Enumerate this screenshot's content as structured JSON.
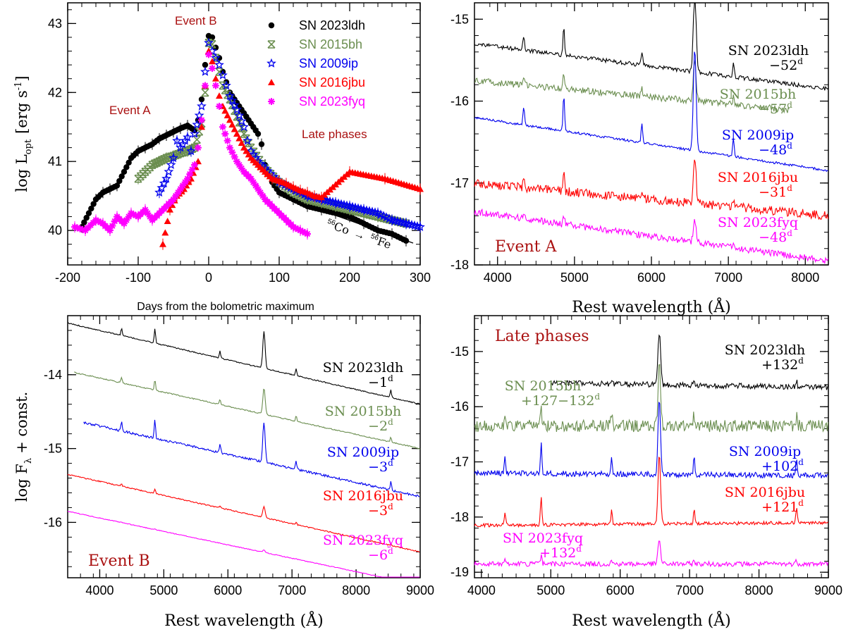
{
  "chart_data": [
    {
      "id": "A",
      "type": "scatter",
      "xlabel": "Days from the bolometric maximum",
      "ylabel": "log L",
      "ylabel_sub": "opt",
      "ylabel_unit": "[erg s",
      "ylabel_unit_sup": "-1",
      "ylabel_unit_end": "]",
      "xlim": [
        -200,
        300
      ],
      "ylim": [
        39.5,
        43.3
      ],
      "xticks": [
        "-200",
        "-100",
        "0",
        "100",
        "200",
        "300"
      ],
      "yticks": [
        "40",
        "41",
        "42",
        "43"
      ],
      "annotations": {
        "event_a": "Event A",
        "event_b": "Event B",
        "late": "Late phases",
        "decay_a": "56",
        "decay_b": "Co",
        "decay_arrow": "→",
        "decay_c": "56",
        "decay_d": "Fe"
      },
      "series": [
        {
          "name": "SN 2023ldh",
          "color": "#000000",
          "marker": "circle",
          "points": [
            [
              -180,
              40.05
            ],
            [
              -170,
              40.25
            ],
            [
              -160,
              40.45
            ],
            [
              -150,
              40.55
            ],
            [
              -140,
              40.6
            ],
            [
              -130,
              40.65
            ],
            [
              -120,
              40.85
            ],
            [
              -110,
              41.05
            ],
            [
              -100,
              41.15
            ],
            [
              -90,
              41.2
            ],
            [
              -80,
              41.25
            ],
            [
              -70,
              41.33
            ],
            [
              -60,
              41.38
            ],
            [
              -50,
              41.43
            ],
            [
              -40,
              41.48
            ],
            [
              -30,
              41.52
            ],
            [
              -20,
              41.45
            ],
            [
              -15,
              41.6
            ],
            [
              -10,
              41.9
            ],
            [
              -5,
              42.4
            ],
            [
              0,
              42.82
            ],
            [
              5,
              42.8
            ],
            [
              10,
              42.65
            ],
            [
              15,
              42.5
            ],
            [
              20,
              42.3
            ],
            [
              25,
              42.15
            ],
            [
              30,
              42.0
            ],
            [
              40,
              41.85
            ],
            [
              50,
              41.7
            ],
            [
              60,
              41.55
            ],
            [
              70,
              41.4
            ],
            [
              75,
              41.25
            ],
            [
              80,
              40.95
            ],
            [
              90,
              40.7
            ],
            [
              100,
              40.55
            ],
            [
              120,
              40.45
            ],
            [
              140,
              40.35
            ],
            [
              160,
              40.3
            ],
            [
              180,
              40.25
            ],
            [
              200,
              40.2
            ],
            [
              220,
              40.1
            ],
            [
              240,
              40.0
            ],
            [
              260,
              39.95
            ],
            [
              280,
              39.85
            ]
          ]
        },
        {
          "name": "SN 2015bh",
          "color": "#6b8e50",
          "marker": "cross",
          "points": [
            [
              -100,
              40.75
            ],
            [
              -90,
              40.85
            ],
            [
              -80,
              40.95
            ],
            [
              -70,
              41.0
            ],
            [
              -60,
              41.05
            ],
            [
              -50,
              41.08
            ],
            [
              -40,
              41.12
            ],
            [
              -30,
              41.15
            ],
            [
              -20,
              41.2
            ],
            [
              -10,
              41.55
            ],
            [
              -5,
              42.0
            ],
            [
              0,
              42.72
            ],
            [
              5,
              42.7
            ],
            [
              10,
              42.5
            ],
            [
              15,
              42.3
            ],
            [
              20,
              42.1
            ],
            [
              30,
              41.9
            ],
            [
              40,
              41.65
            ],
            [
              50,
              41.4
            ],
            [
              60,
              41.2
            ],
            [
              80,
              40.9
            ],
            [
              100,
              40.7
            ],
            [
              120,
              40.55
            ],
            [
              140,
              40.45
            ],
            [
              160,
              40.4
            ],
            [
              180,
              40.35
            ],
            [
              200,
              40.3
            ],
            [
              220,
              40.25
            ],
            [
              240,
              40.2
            ],
            [
              260,
              40.15
            ],
            [
              280,
              40.1
            ]
          ]
        },
        {
          "name": "SN 2009ip",
          "color": "#0000ee",
          "marker": "star",
          "points": [
            [
              -70,
              40.55
            ],
            [
              -60,
              40.75
            ],
            [
              -50,
              41.05
            ],
            [
              -45,
              41.3
            ],
            [
              -40,
              41.2
            ],
            [
              -30,
              41.35
            ],
            [
              -25,
              41.15
            ],
            [
              -20,
              41.4
            ],
            [
              -10,
              41.8
            ],
            [
              -5,
              42.3
            ],
            [
              0,
              42.72
            ],
            [
              5,
              42.6
            ],
            [
              10,
              42.5
            ],
            [
              15,
              42.4
            ],
            [
              20,
              42.25
            ],
            [
              25,
              42.1
            ],
            [
              30,
              41.95
            ],
            [
              40,
              41.75
            ],
            [
              50,
              41.5
            ],
            [
              55,
              41.3
            ],
            [
              60,
              41.15
            ],
            [
              70,
              41.0
            ],
            [
              80,
              40.9
            ],
            [
              100,
              40.7
            ],
            [
              120,
              40.6
            ],
            [
              140,
              40.5
            ],
            [
              160,
              40.45
            ],
            [
              180,
              40.4
            ],
            [
              200,
              40.35
            ],
            [
              220,
              40.3
            ],
            [
              240,
              40.25
            ],
            [
              260,
              40.15
            ],
            [
              280,
              40.1
            ],
            [
              300,
              40.05
            ]
          ]
        },
        {
          "name": "SN 2016jbu",
          "color": "#ff0000",
          "marker": "triangle",
          "points": [
            [
              -65,
              39.8
            ],
            [
              -55,
              40.3
            ],
            [
              -45,
              40.5
            ],
            [
              -35,
              40.6
            ],
            [
              -25,
              40.75
            ],
            [
              -15,
              41.0
            ],
            [
              -10,
              41.5
            ],
            [
              -5,
              42.1
            ],
            [
              0,
              42.6
            ],
            [
              5,
              42.45
            ],
            [
              10,
              42.2
            ],
            [
              15,
              41.95
            ],
            [
              20,
              41.8
            ],
            [
              30,
              41.6
            ],
            [
              40,
              41.4
            ],
            [
              50,
              41.2
            ],
            [
              60,
              41.05
            ],
            [
              70,
              40.95
            ],
            [
              80,
              40.85
            ],
            [
              90,
              40.75
            ],
            [
              100,
              40.72
            ],
            [
              110,
              40.68
            ],
            [
              120,
              40.63
            ],
            [
              130,
              40.58
            ],
            [
              140,
              40.55
            ],
            [
              150,
              40.5
            ],
            [
              160,
              40.48
            ],
            [
              200,
              40.85
            ],
            [
              250,
              40.75
            ],
            [
              300,
              40.6
            ]
          ]
        },
        {
          "name": "SN 2023fyq",
          "color": "#ff00ff",
          "marker": "asterisk",
          "points": [
            [
              -190,
              40.05
            ],
            [
              -175,
              40.0
            ],
            [
              -160,
              40.15
            ],
            [
              -150,
              40.1
            ],
            [
              -140,
              40.0
            ],
            [
              -130,
              40.2
            ],
            [
              -120,
              40.1
            ],
            [
              -110,
              40.25
            ],
            [
              -100,
              40.2
            ],
            [
              -90,
              40.3
            ],
            [
              -80,
              40.15
            ],
            [
              -70,
              40.25
            ],
            [
              -60,
              40.35
            ],
            [
              -50,
              40.45
            ],
            [
              -40,
              40.6
            ],
            [
              -30,
              40.75
            ],
            [
              -20,
              40.95
            ],
            [
              -15,
              41.2
            ],
            [
              -10,
              41.6
            ],
            [
              -5,
              42.1
            ],
            [
              0,
              42.55
            ],
            [
              5,
              42.35
            ],
            [
              10,
              42.1
            ],
            [
              15,
              41.8
            ],
            [
              20,
              41.5
            ],
            [
              30,
              41.2
            ],
            [
              40,
              41.0
            ],
            [
              50,
              40.85
            ],
            [
              60,
              40.75
            ],
            [
              70,
              40.6
            ],
            [
              80,
              40.45
            ],
            [
              90,
              40.35
            ],
            [
              100,
              40.25
            ],
            [
              110,
              40.15
            ],
            [
              120,
              40.05
            ],
            [
              130,
              40.0
            ],
            [
              140,
              39.95
            ]
          ]
        }
      ]
    },
    {
      "id": "B",
      "type": "line",
      "xlabel": "Rest wavelength (Å)",
      "xlim": [
        3700,
        8300
      ],
      "ylim": [
        -18.0,
        -14.8
      ],
      "xticks": [
        "4000",
        "5000",
        "6000",
        "7000",
        "8000"
      ],
      "yticks": [
        "-15",
        "-16",
        "-17",
        "-18"
      ],
      "panel_label": "Event A",
      "series": [
        {
          "name": "SN 2023ldh",
          "phase": "−52",
          "unit": "d",
          "color": "#000000",
          "wmin": 3700,
          "wmax": 8300,
          "base": -15.3,
          "slope": -0.55,
          "noise": 0.05,
          "halpha": 1.0,
          "hbeta": 0.35
        },
        {
          "name": "SN 2015bh",
          "phase": "−57",
          "unit": "d",
          "color": "#6b8e50",
          "wmin": 3700,
          "wmax": 7800,
          "base": -15.75,
          "slope": -0.4,
          "noise": 0.08,
          "halpha": 0.5,
          "hbeta": 0.2
        },
        {
          "name": "SN 2009ip",
          "phase": "−48",
          "unit": "d",
          "color": "#0000ee",
          "wmin": 3700,
          "wmax": 8300,
          "base": -16.2,
          "slope": -0.65,
          "noise": 0.03,
          "halpha": 1.25,
          "hbeta": 0.45
        },
        {
          "name": "SN 2016jbu",
          "phase": "−31",
          "unit": "d",
          "color": "#ff0000",
          "wmin": 3700,
          "wmax": 8300,
          "base": -17.0,
          "slope": -0.4,
          "noise": 0.11,
          "halpha": 0.55,
          "hbeta": 0.2
        },
        {
          "name": "SN 2023fyq",
          "phase": "−48",
          "unit": "d",
          "color": "#ff00ff",
          "wmin": 3700,
          "wmax": 8300,
          "base": -17.35,
          "slope": -0.6,
          "noise": 0.08,
          "halpha": 0.25,
          "hbeta": 0.12
        }
      ]
    },
    {
      "id": "C",
      "type": "line",
      "xlabel": "Rest wavelength (Å)",
      "ylabel": "log F",
      "ylabel_sub": "λ",
      "ylabel_end": "+ const.",
      "xlim": [
        3500,
        9000
      ],
      "ylim": [
        -16.75,
        -13.2
      ],
      "xticks": [
        "4000",
        "5000",
        "6000",
        "7000",
        "8000",
        "9000"
      ],
      "yticks": [
        "-14",
        "-15",
        "-16"
      ],
      "panel_label": "Event B",
      "series": [
        {
          "name": "SN 2023ldh",
          "phase": "−1",
          "unit": "d",
          "color": "#000000",
          "wmin": 3500,
          "wmax": 9000,
          "base": -13.3,
          "slope": -1.1,
          "noise": 0.015,
          "halpha": 0.5,
          "hbeta": 0.2
        },
        {
          "name": "SN 2015bh",
          "phase": "−2",
          "unit": "d",
          "color": "#6b8e50",
          "wmin": 3600,
          "wmax": 9000,
          "base": -13.95,
          "slope": -1.05,
          "noise": 0.015,
          "halpha": 0.35,
          "hbeta": 0.15
        },
        {
          "name": "SN 2009ip",
          "phase": "−3",
          "unit": "d",
          "color": "#0000ee",
          "wmin": 3750,
          "wmax": 9000,
          "base": -14.6,
          "slope": -1.05,
          "noise": 0.03,
          "halpha": 0.55,
          "hbeta": 0.25
        },
        {
          "name": "SN 2016jbu",
          "phase": "−3",
          "unit": "d",
          "color": "#ff0000",
          "wmin": 3500,
          "wmax": 9000,
          "base": -15.35,
          "slope": -1.05,
          "noise": 0.015,
          "halpha": 0.15,
          "hbeta": 0.06
        },
        {
          "name": "SN 2023fyq",
          "phase": "−6",
          "unit": "d",
          "color": "#ff00ff",
          "wmin": 3500,
          "wmax": 9000,
          "base": -15.85,
          "slope": -1.0,
          "noise": 0.01,
          "halpha": 0.03,
          "hbeta": 0.01
        }
      ]
    },
    {
      "id": "D",
      "type": "line",
      "xlabel": "Rest wavelength (Å)",
      "xlim": [
        3900,
        9000
      ],
      "ylim": [
        -19.1,
        -14.35
      ],
      "xticks": [
        "4000",
        "5000",
        "6000",
        "7000",
        "8000",
        "9000"
      ],
      "yticks": [
        "-15",
        "-16",
        "-17",
        "-18",
        "-19"
      ],
      "panel_label": "Late phases",
      "series": [
        {
          "name": "SN 2023ldh",
          "phase": "+132",
          "unit": "d",
          "color": "#000000",
          "wmin": 5000,
          "wmax": 9000,
          "base": -15.55,
          "slope": -0.1,
          "noise": 0.1,
          "halpha": 0.95,
          "hbeta": 0.2
        },
        {
          "name": "SN 2015bh",
          "phase": "+127−132",
          "unit": "d",
          "color": "#6b8e50",
          "wmin": 3900,
          "wmax": 9000,
          "base": -16.35,
          "slope": 0.0,
          "noise": 0.22,
          "halpha": 1.1,
          "hbeta": 0.4
        },
        {
          "name": "SN 2009ip",
          "phase": "+102",
          "unit": "d",
          "color": "#0000ee",
          "wmin": 3900,
          "wmax": 9000,
          "base": -17.2,
          "slope": -0.05,
          "noise": 0.1,
          "halpha": 1.35,
          "hbeta": 0.6
        },
        {
          "name": "SN 2016jbu",
          "phase": "+121",
          "unit": "d",
          "color": "#ff0000",
          "wmin": 3900,
          "wmax": 9000,
          "base": -18.15,
          "slope": 0.05,
          "noise": 0.06,
          "halpha": 1.25,
          "hbeta": 0.5
        },
        {
          "name": "SN 2023fyq",
          "phase": "+132",
          "unit": "d",
          "color": "#ff00ff",
          "wmin": 3900,
          "wmax": 9000,
          "base": -18.85,
          "slope": 0.0,
          "noise": 0.09,
          "halpha": 0.45,
          "hbeta": 0.15
        }
      ]
    }
  ]
}
